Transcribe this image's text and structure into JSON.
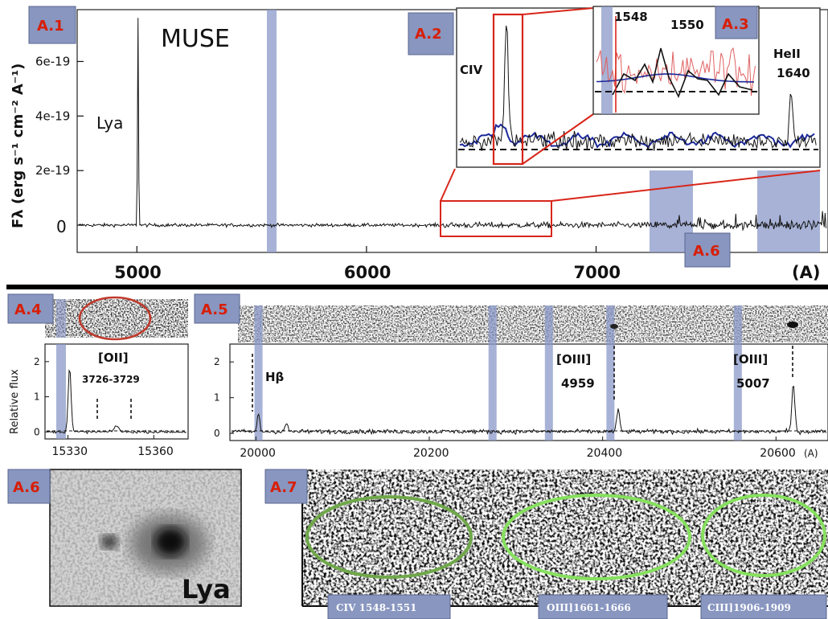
{
  "chart_data": [
    {
      "panel": "A.1",
      "type": "line",
      "title": "MUSE",
      "xlabel": "(A)",
      "ylabel": "Fλ (erg s⁻¹ cm⁻² A⁻¹)",
      "x_ticks": [
        "5000",
        "6000",
        "7000"
      ],
      "y_ticks": [
        "0",
        "2e-19",
        "4e-19",
        "6e-19"
      ],
      "xlim": [
        4740,
        8010
      ],
      "ylim": [
        -1e-19,
        7.9e-19
      ],
      "lines": [
        {
          "name": "Lya",
          "x": 5005,
          "peak": 7.6e-19
        }
      ],
      "shaded_x": [
        5580,
        7350,
        7880
      ],
      "annotations": [
        "Lya"
      ]
    },
    {
      "panel": "A.2",
      "type": "line",
      "annotations": [
        "CIV",
        "HeII",
        "1640"
      ]
    },
    {
      "panel": "A.3",
      "type": "line",
      "annotations": [
        "1548",
        "1550"
      ]
    },
    {
      "panel": "A.4",
      "type": "line",
      "ylabel": "Relative flux",
      "x_ticks": [
        "15330",
        "15360"
      ],
      "y_ticks": [
        "0",
        "1",
        "2"
      ],
      "xlim": [
        15322,
        15372
      ],
      "ylim": [
        -0.2,
        2.5
      ],
      "annotations": [
        "[OII]",
        "3726-3729"
      ]
    },
    {
      "panel": "A.5",
      "type": "line",
      "x_ticks": [
        "20000",
        "20200",
        "20400",
        "20600"
      ],
      "y_ticks": [
        "0",
        "1",
        "2"
      ],
      "xlabel": "(A)",
      "xlim": [
        19970,
        20660
      ],
      "ylim": [
        -0.2,
        2.5
      ],
      "lines": [
        {
          "name": "Hβ",
          "x": 20020
        },
        {
          "name": "[OIII] 4959",
          "x": 20418,
          "peak": 0.6
        },
        {
          "name": "[OIII] 5007",
          "x": 20620,
          "peak": 1.3
        }
      ],
      "annotations": [
        "Hβ",
        "[OIII]",
        "4959",
        "[OIII]",
        "5007"
      ]
    }
  ],
  "panels": {
    "a1": {
      "tag": "A.1",
      "title": "MUSE",
      "line_label": "Lya"
    },
    "a2": {
      "tag": "A.2",
      "civ": "CIV",
      "heii": "HeII",
      "heii_wl": "1640"
    },
    "a3": {
      "tag": "A.3",
      "wl1": "1548",
      "wl2": "1550"
    },
    "a4": {
      "tag": "A.4",
      "line": "[OII]",
      "range": "3726-3729",
      "ylabel": "Relative flux"
    },
    "a5": {
      "tag": "A.5",
      "hb": "Hβ",
      "o3a": "[OIII]",
      "o3a_wl": "4959",
      "o3b": "[OIII]",
      "o3b_wl": "5007",
      "unit": "(A)"
    },
    "a6": {
      "tag": "A.6",
      "label": "Lya"
    },
    "a6b": {
      "tag": "A.6"
    },
    "a7": {
      "tag": "A.7",
      "civ": "CIV 1548-1551",
      "oiii": "OIII]1661-1666",
      "ciii": "CIII]1906-1909"
    }
  },
  "colors": {
    "tag_bg": "#8896c0",
    "tag_text": "#d81e05",
    "band": "#8a98c8",
    "zoom_box": "#d8261a",
    "circle_red": "#c0392b",
    "circle_green": "#7fe05a",
    "blue_spec": "#1c2a9a",
    "red_spec": "#e06060"
  }
}
